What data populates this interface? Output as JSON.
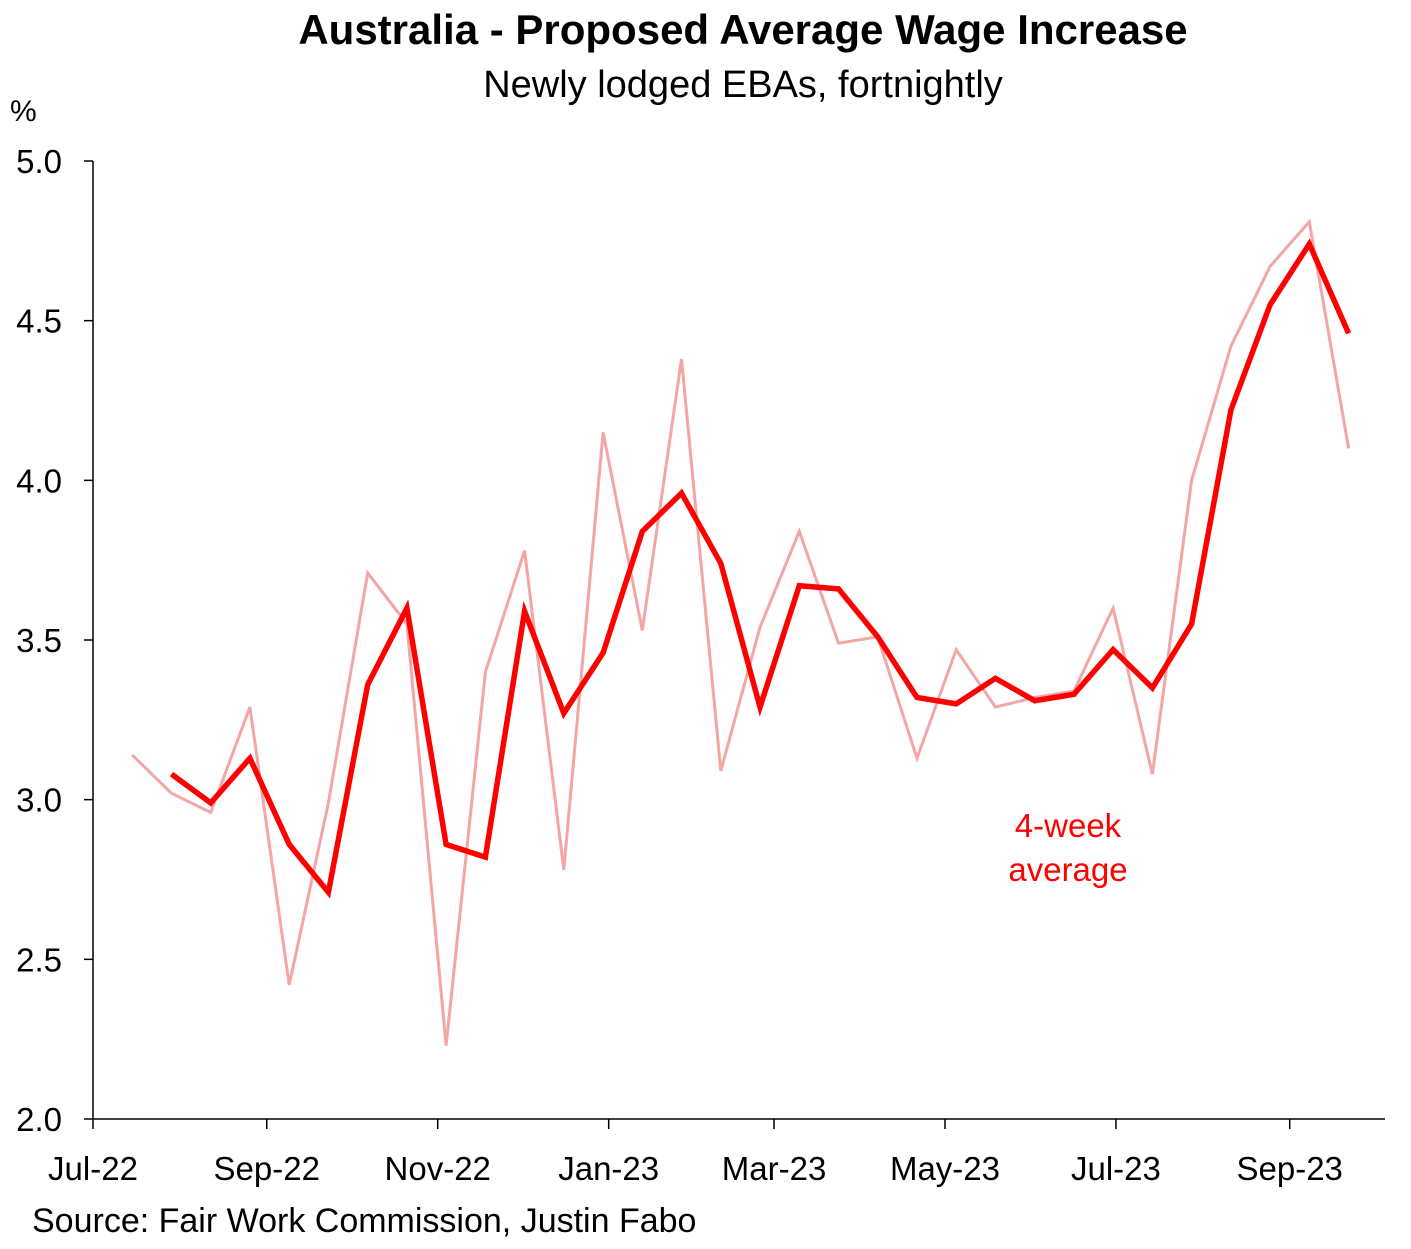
{
  "chart_data": {
    "type": "line",
    "title": "Australia - Proposed Average Wage Increase",
    "subtitle": "Newly lodged EBAs, fortnightly",
    "y_unit": "%",
    "source": "Source: Fair Work Commission,  Justin Fabo",
    "ylim": [
      2.0,
      5.0
    ],
    "yticks": [
      "2.0",
      "2.5",
      "3.0",
      "3.5",
      "4.0",
      "4.5",
      "5.0"
    ],
    "xlim": [
      "2022-07-01",
      "2023-10-05"
    ],
    "xticks": [
      {
        "date": "2022-07-01",
        "label": "Jul-22"
      },
      {
        "date": "2022-09-01",
        "label": "Sep-22"
      },
      {
        "date": "2022-11-01",
        "label": "Nov-22"
      },
      {
        "date": "2023-01-01",
        "label": "Jan-23"
      },
      {
        "date": "2023-03-01",
        "label": "Mar-23"
      },
      {
        "date": "2023-05-01",
        "label": "May-23"
      },
      {
        "date": "2023-07-01",
        "label": "Jul-23"
      },
      {
        "date": "2023-09-01",
        "label": "Sep-23"
      }
    ],
    "grid": false,
    "legend": "none",
    "annotations": [
      {
        "text_lines": [
          "4-week",
          "average"
        ],
        "color": "#ff0000"
      }
    ],
    "series": [
      {
        "name": "",
        "color": "#f4a6a4",
        "x": [
          "2022-07-15",
          "2022-07-29",
          "2022-08-12",
          "2022-08-26",
          "2022-09-09",
          "2022-09-23",
          "2022-10-07",
          "2022-10-21",
          "2022-11-04",
          "2022-11-18",
          "2022-12-02",
          "2022-12-16",
          "2022-12-30",
          "2023-01-13",
          "2023-01-27",
          "2023-02-10",
          "2023-02-24",
          "2023-03-10",
          "2023-03-24",
          "2023-04-07",
          "2023-04-21",
          "2023-05-05",
          "2023-05-19",
          "2023-06-02",
          "2023-06-16",
          "2023-06-30",
          "2023-07-14",
          "2023-07-28",
          "2023-08-11",
          "2023-08-25",
          "2023-09-08",
          "2023-09-22",
          "2023-10-06"
        ],
        "values": [
          3.14,
          3.02,
          2.96,
          3.29,
          2.42,
          2.99,
          3.71,
          3.55,
          2.23,
          3.4,
          3.78,
          2.78,
          4.15,
          3.53,
          4.38,
          3.09,
          3.54,
          3.84,
          3.49,
          3.51,
          3.13,
          3.47,
          3.29,
          3.32,
          3.34,
          3.6,
          3.08,
          4.0,
          4.42,
          4.67,
          4.81,
          4.1,
          null
        ]
      },
      {
        "name": "",
        "color": "#ff0000",
        "x": [
          "2022-07-29",
          "2022-08-12",
          "2022-08-26",
          "2022-09-09",
          "2022-09-23",
          "2022-10-07",
          "2022-10-21",
          "2022-11-04",
          "2022-11-18",
          "2022-12-02",
          "2022-12-16",
          "2022-12-30",
          "2023-01-13",
          "2023-01-27",
          "2023-02-10",
          "2023-02-24",
          "2023-03-10",
          "2023-03-24",
          "2023-04-07",
          "2023-04-21",
          "2023-05-05",
          "2023-05-19",
          "2023-06-02",
          "2023-06-16",
          "2023-06-30",
          "2023-07-14",
          "2023-07-28",
          "2023-08-11",
          "2023-08-25",
          "2023-09-08",
          "2023-09-22"
        ],
        "values": [
          3.08,
          2.99,
          3.13,
          2.86,
          2.71,
          3.36,
          3.6,
          2.86,
          2.82,
          3.59,
          3.27,
          3.46,
          3.84,
          3.96,
          3.74,
          3.29,
          3.67,
          3.66,
          3.51,
          3.32,
          3.3,
          3.38,
          3.31,
          3.33,
          3.47,
          3.35,
          3.55,
          4.22,
          4.55,
          4.74,
          4.46
        ]
      }
    ]
  }
}
